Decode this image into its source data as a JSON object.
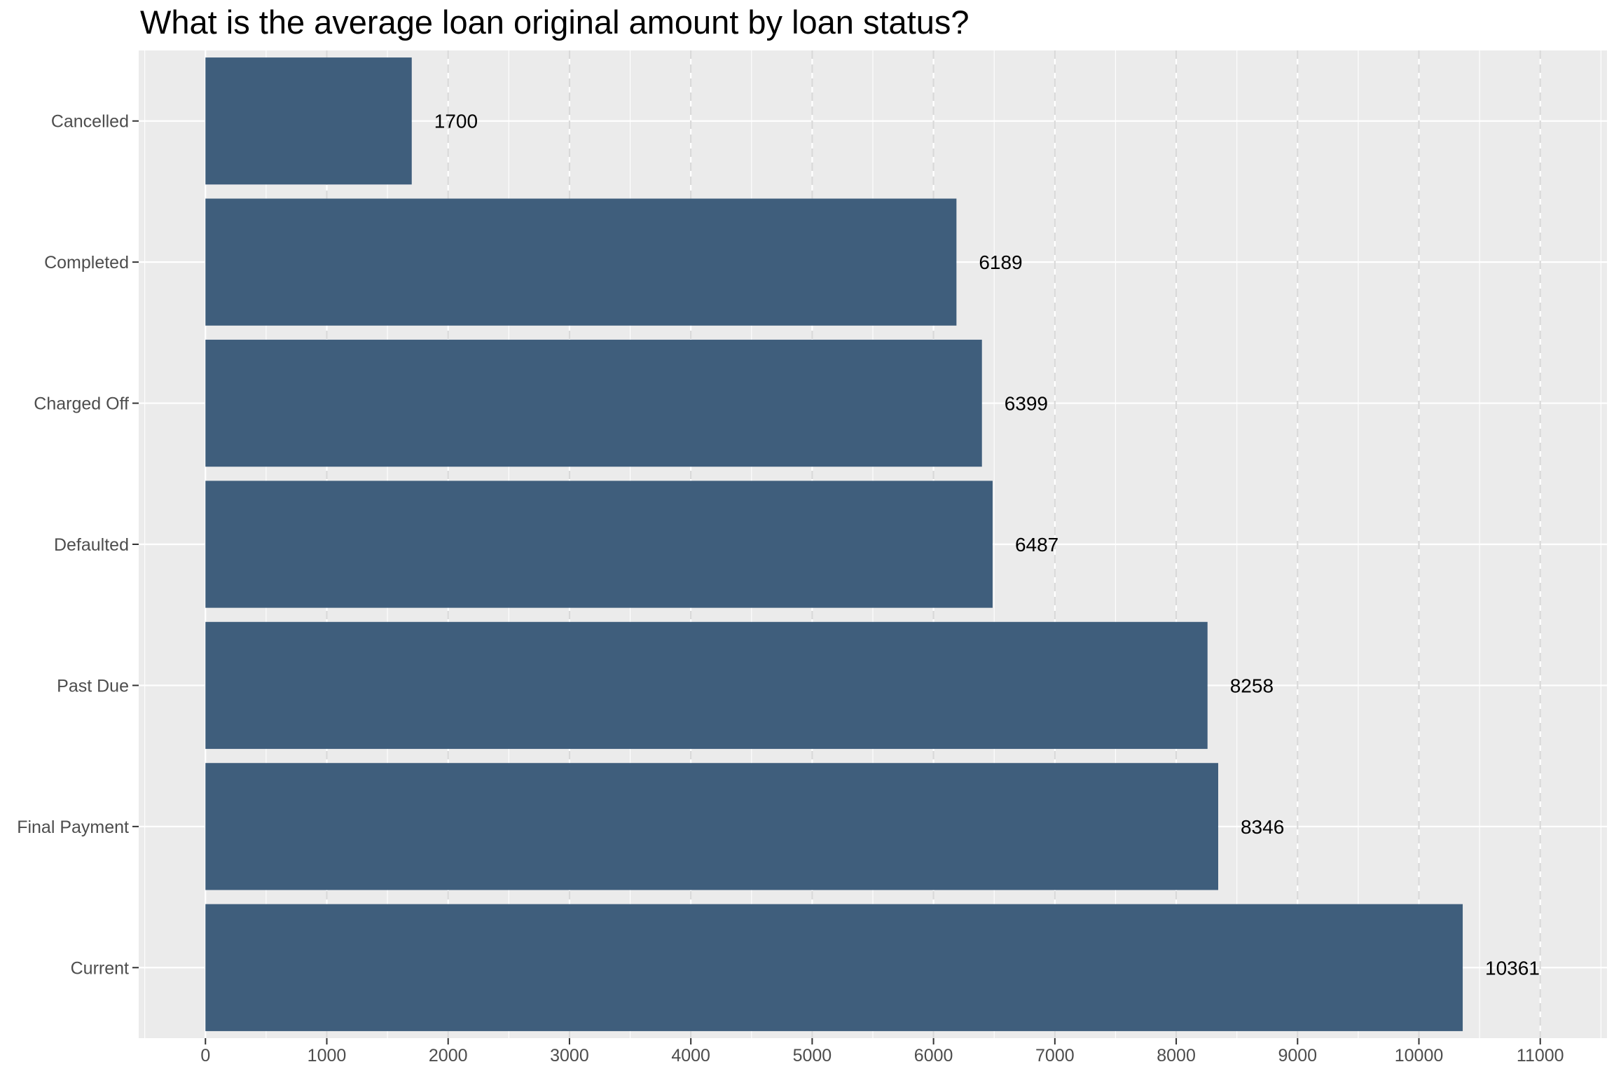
{
  "chart_data": {
    "type": "bar",
    "orientation": "horizontal",
    "title": "What is the average loan original amount by loan status?",
    "xlabel": "",
    "ylabel": "",
    "categories": [
      "Cancelled",
      "Completed",
      "Charged Off",
      "Defaulted",
      "Past Due",
      "Final Payment",
      "Current"
    ],
    "values": [
      1700,
      6189,
      6399,
      6487,
      8258,
      8346,
      10361
    ],
    "data_labels": [
      "1700",
      "6189",
      "6399",
      "6487",
      "8258",
      "8346",
      "10361"
    ],
    "x_ticks": [
      "0",
      "1000",
      "2000",
      "3000",
      "4000",
      "5000",
      "6000",
      "7000",
      "8000",
      "9000",
      "10000",
      "11000"
    ],
    "xlim": [
      -550,
      11550
    ],
    "grid": true,
    "legend": "none",
    "colors": {
      "bar": "#3f5e7c",
      "panel_background": "#ebebeb",
      "grid_line": "#ffffff",
      "dashed_grid_line": "#d9d9d9"
    }
  }
}
